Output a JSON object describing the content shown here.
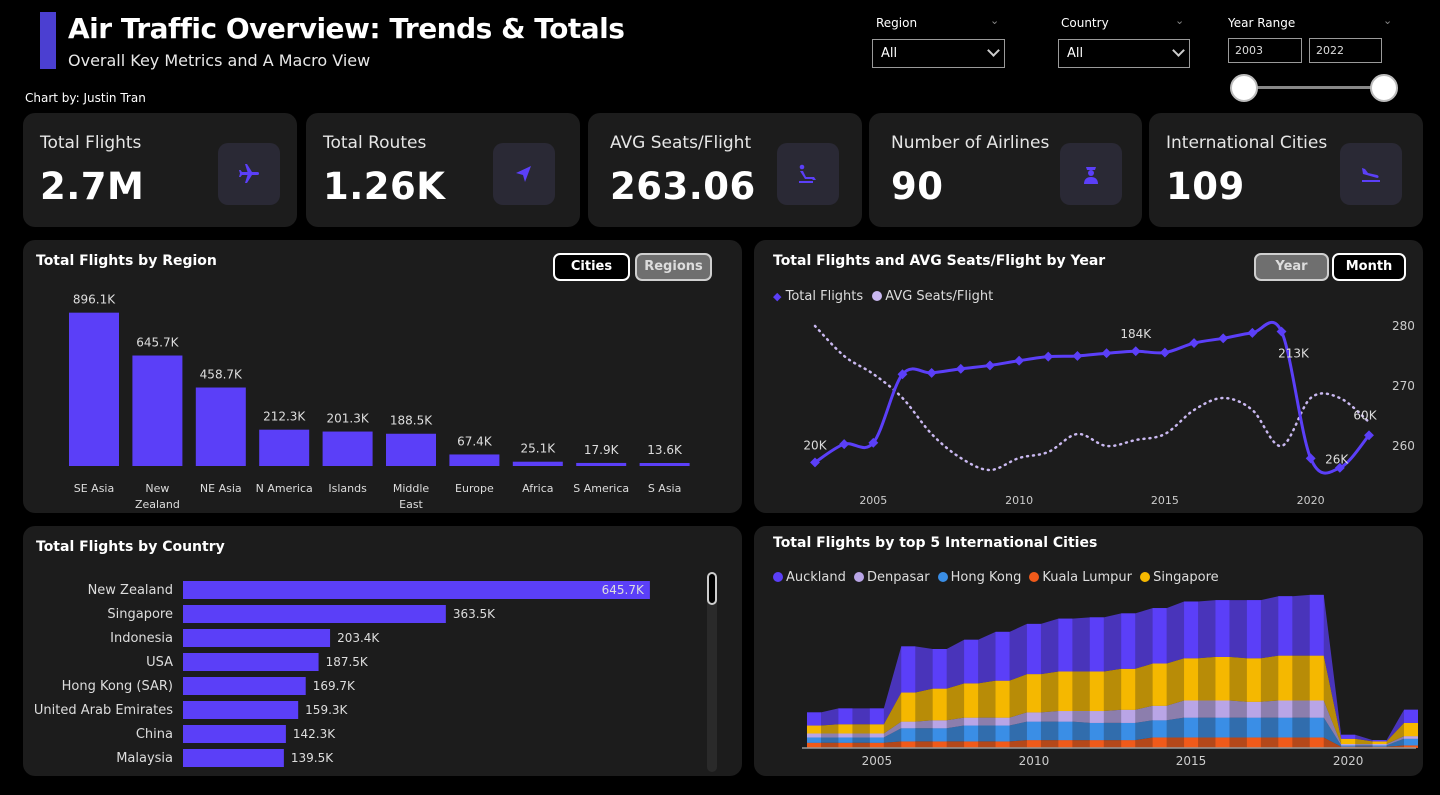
{
  "header": {
    "title": "Air Traffic Overview: Trends & Totals",
    "subtitle": "Overall Key Metrics and A Macro View",
    "credit": "Chart by: Justin Tran"
  },
  "filters": {
    "region": {
      "label": "Region",
      "value": "All"
    },
    "country": {
      "label": "Country",
      "value": "All"
    },
    "year_range": {
      "label": "Year Range",
      "from": "2003",
      "to": "2022"
    }
  },
  "kpis": [
    {
      "label": "Total Flights",
      "value": "2.7M",
      "icon": "airplane-icon"
    },
    {
      "label": "Total Routes",
      "value": "1.26K",
      "icon": "navigation-arrow-icon"
    },
    {
      "label": "AVG Seats/Flight",
      "value": "263.06",
      "icon": "seat-icon"
    },
    {
      "label": "Number of Airlines",
      "value": "90",
      "icon": "pilot-icon"
    },
    {
      "label": "International Cities",
      "value": "109",
      "icon": "flight-landing-icon"
    }
  ],
  "colors": {
    "accent": "#4b3fd1",
    "bar": "#5b3ff8",
    "line_secondary": "#c9b8f0",
    "auckland": "#5b3ff8",
    "denpasar": "#b9a5e6",
    "hong_kong": "#3a8ee6",
    "kuala_lumpur": "#f05a1a",
    "singapore": "#f5b800"
  },
  "region_panel": {
    "title": "Total Flights by Region",
    "toggle": [
      "Cities",
      "Regions"
    ],
    "toggle_selected": "Regions"
  },
  "year_panel": {
    "title": "Total Flights and AVG Seats/Flight by Year",
    "toggle": [
      "Year",
      "Month"
    ],
    "toggle_selected": "Year"
  },
  "country_panel": {
    "title": "Total Flights by Country"
  },
  "cities_panel": {
    "title": "Total Flights by top 5 International Cities"
  },
  "chart_data": [
    {
      "id": "region",
      "type": "bar",
      "categories": [
        "SE Asia",
        "New Zealand",
        "NE Asia",
        "N America",
        "Islands",
        "Middle East",
        "Europe",
        "Africa",
        "S America",
        "S Asia"
      ],
      "category_lines": [
        [
          "SE Asia"
        ],
        [
          "New",
          "Zealand"
        ],
        [
          "NE Asia"
        ],
        [
          "N America"
        ],
        [
          "Islands"
        ],
        [
          "Middle",
          "East"
        ],
        [
          "Europe"
        ],
        [
          "Africa"
        ],
        [
          "S America"
        ],
        [
          "S Asia"
        ]
      ],
      "values": [
        896.1,
        645.7,
        458.7,
        212.3,
        201.3,
        188.5,
        67.4,
        25.1,
        17.9,
        13.6
      ],
      "data_labels": [
        "896.1K",
        "645.7K",
        "458.7K",
        "212.3K",
        "201.3K",
        "188.5K",
        "67.4K",
        "25.1K",
        "17.9K",
        "13.6K"
      ],
      "unit": "K flights",
      "ylim": [
        0,
        900
      ]
    },
    {
      "id": "year",
      "type": "line",
      "x": [
        2003,
        2004,
        2005,
        2006,
        2007,
        2008,
        2009,
        2010,
        2011,
        2012,
        2013,
        2014,
        2015,
        2016,
        2017,
        2018,
        2019,
        2020,
        2021,
        2022
      ],
      "series": [
        {
          "name": "Total Flights",
          "values": [
            20,
            47,
            49,
            150,
            152,
            158,
            163,
            170,
            176,
            177,
            181,
            184,
            182,
            196,
            203,
            211,
            213,
            26,
            12,
            60
          ],
          "labels": {
            "0": "20K",
            "11": "184K",
            "16": "213K",
            "17": "26K",
            "19": "60K"
          }
        },
        {
          "name": "AVG Seats/Flight",
          "values": [
            280,
            275,
            272,
            268,
            262,
            258,
            256,
            258,
            259,
            262,
            260,
            261,
            262,
            266,
            268,
            266,
            260,
            268,
            268,
            264
          ]
        }
      ],
      "x_ticks": [
        "2005",
        "2010",
        "2015",
        "2020"
      ],
      "y2_ticks": [
        "260",
        "270",
        "280"
      ],
      "y2lim": [
        255,
        281
      ],
      "ylim": [
        0,
        230
      ],
      "legend": "top-left"
    },
    {
      "id": "country",
      "type": "bar",
      "orientation": "horizontal",
      "categories": [
        "New Zealand",
        "Singapore",
        "Indonesia",
        "USA",
        "Hong Kong (SAR)",
        "United Arab Emirates",
        "China",
        "Malaysia"
      ],
      "values": [
        645.7,
        363.5,
        203.4,
        187.5,
        169.7,
        159.3,
        142.3,
        139.5
      ],
      "data_labels": [
        "645.7K",
        "363.5K",
        "203.4K",
        "187.5K",
        "169.7K",
        "159.3K",
        "142.3K",
        "139.5K"
      ],
      "xlim": [
        0,
        650
      ]
    },
    {
      "id": "cities",
      "type": "area",
      "stacked": true,
      "x": [
        2003,
        2004,
        2005,
        2006,
        2007,
        2008,
        2009,
        2010,
        2011,
        2012,
        2013,
        2014,
        2015,
        2016,
        2017,
        2018,
        2019,
        2020,
        2021,
        2022
      ],
      "series": [
        {
          "name": "Auckland",
          "values": [
            1.0,
            1.2,
            1.2,
            3.5,
            3.0,
            3.3,
            3.7,
            3.8,
            4.0,
            4.1,
            4.2,
            4.2,
            4.3,
            4.3,
            4.4,
            4.5,
            4.6,
            0.3,
            0.1,
            1.0
          ]
        },
        {
          "name": "Denpasar",
          "values": [
            0.3,
            0.3,
            0.3,
            0.5,
            0.6,
            0.6,
            0.6,
            0.7,
            0.8,
            0.9,
            1.0,
            1.1,
            1.3,
            1.3,
            1.2,
            1.3,
            1.3,
            0.1,
            0.1,
            0.2
          ]
        },
        {
          "name": "Hong Kong",
          "values": [
            0.4,
            0.4,
            0.4,
            1.0,
            1.0,
            1.2,
            1.2,
            1.4,
            1.4,
            1.3,
            1.3,
            1.3,
            1.5,
            1.5,
            1.5,
            1.5,
            1.5,
            0.1,
            0.1,
            0.5
          ]
        },
        {
          "name": "Kuala Lumpur",
          "values": [
            0.4,
            0.4,
            0.4,
            0.5,
            0.5,
            0.5,
            0.5,
            0.6,
            0.6,
            0.6,
            0.6,
            0.8,
            0.8,
            0.8,
            0.8,
            0.8,
            0.8,
            0.1,
            0.1,
            0.2
          ]
        },
        {
          "name": "Singapore",
          "values": [
            0.6,
            0.7,
            0.7,
            2.2,
            2.4,
            2.6,
            2.8,
            2.9,
            3.0,
            3.0,
            3.1,
            3.2,
            3.2,
            3.3,
            3.3,
            3.4,
            3.4,
            0.4,
            0.2,
            1.0
          ]
        }
      ],
      "x_ticks": [
        "2005",
        "2010",
        "2015",
        "2020"
      ],
      "legend": "top-left"
    }
  ]
}
